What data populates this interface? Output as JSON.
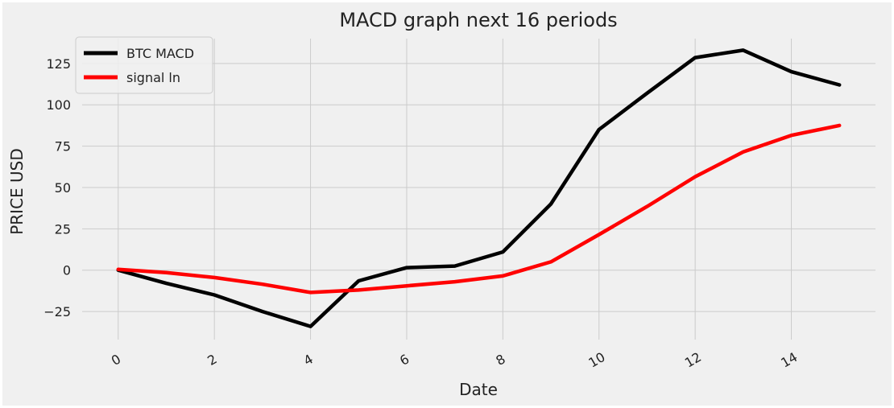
{
  "chart_data": {
    "type": "line",
    "title": "MACD graph next 16 periods",
    "xlabel": "Date",
    "ylabel": "PRICE USD",
    "x": [
      0,
      1,
      2,
      3,
      4,
      5,
      6,
      7,
      8,
      9,
      10,
      11,
      12,
      13,
      14,
      15
    ],
    "xticks": [
      0,
      2,
      4,
      6,
      8,
      10,
      12,
      14
    ],
    "yticks": [
      -25,
      0,
      25,
      50,
      75,
      100,
      125
    ],
    "xlim": [
      -0.75,
      15.75
    ],
    "ylim": [
      -42,
      140
    ],
    "grid": true,
    "legend_position": "top-left",
    "background": "#f0f0f0",
    "series": [
      {
        "name": "BTC MACD",
        "color": "#000000",
        "values": [
          0,
          -8,
          -15,
          -25,
          -34,
          -6.5,
          1.5,
          2.5,
          11,
          40,
          85,
          107,
          128.5,
          133,
          120,
          112
        ]
      },
      {
        "name": "signal ln",
        "color": "#ff0000",
        "values": [
          0.5,
          -1.5,
          -4.5,
          -8.5,
          -13.5,
          -12,
          -9.5,
          -7,
          -3.5,
          5,
          21.5,
          38.5,
          56.5,
          71.5,
          81.5,
          87.5
        ]
      }
    ]
  }
}
